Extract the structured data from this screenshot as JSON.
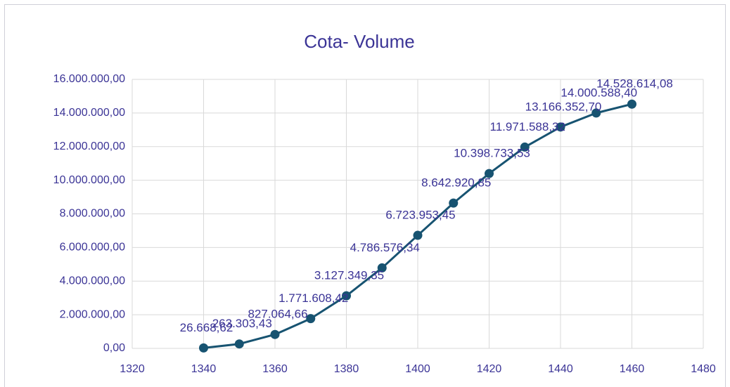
{
  "chart_data": {
    "type": "line",
    "title": "Cota- Volume",
    "x": [
      1340,
      1350,
      1360,
      1370,
      1380,
      1390,
      1400,
      1410,
      1420,
      1430,
      1440,
      1450,
      1460
    ],
    "values": [
      26668.62,
      263303.43,
      827064.66,
      1771608.42,
      3127349.35,
      4786576.34,
      6723953.45,
      8642920.85,
      10398733.53,
      11971588.32,
      13166352.7,
      14000588.4,
      14528614.08
    ],
    "value_labels": [
      "26.668,62",
      "263.303,43",
      "827.064,66",
      "1.771.608,42",
      "3.127.349,35",
      "4.786.576,34",
      "6.723.953,45",
      "8.642.920,85",
      "10.398.733,53",
      "11.971.588,32",
      "13.166.352,70",
      "14.000.588,40",
      "14.528.614,08"
    ],
    "color": "#175371",
    "xlim": [
      1320,
      1480
    ],
    "xticks": [
      1320,
      1340,
      1360,
      1380,
      1400,
      1420,
      1440,
      1460,
      1480
    ],
    "ylim": [
      0,
      16000000
    ],
    "yticks": [
      {
        "value": 0,
        "label": "0,00"
      },
      {
        "value": 2000000,
        "label": "2.000.000,00"
      },
      {
        "value": 4000000,
        "label": "4.000.000,00"
      },
      {
        "value": 6000000,
        "label": "6.000.000,00"
      },
      {
        "value": 8000000,
        "label": "8.000.000,00"
      },
      {
        "value": 10000000,
        "label": "10.000.000,00"
      },
      {
        "value": 12000000,
        "label": "12.000.000,00"
      },
      {
        "value": 14000000,
        "label": "14.000.000,00"
      },
      {
        "value": 16000000,
        "label": "16.000.000,00"
      }
    ],
    "grid": true
  }
}
